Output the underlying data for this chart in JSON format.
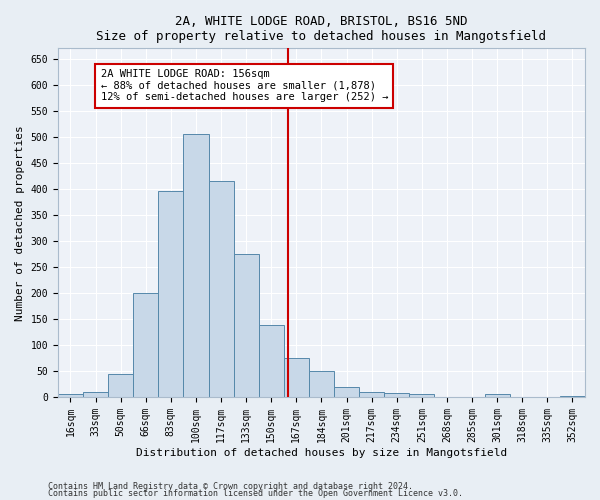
{
  "title1": "2A, WHITE LODGE ROAD, BRISTOL, BS16 5ND",
  "title2": "Size of property relative to detached houses in Mangotsfield",
  "xlabel": "Distribution of detached houses by size in Mangotsfield",
  "ylabel": "Number of detached properties",
  "bin_labels": [
    "16sqm",
    "33sqm",
    "50sqm",
    "66sqm",
    "83sqm",
    "100sqm",
    "117sqm",
    "133sqm",
    "150sqm",
    "167sqm",
    "184sqm",
    "201sqm",
    "217sqm",
    "234sqm",
    "251sqm",
    "268sqm",
    "285sqm",
    "301sqm",
    "318sqm",
    "335sqm",
    "352sqm"
  ],
  "bar_heights": [
    5,
    10,
    45,
    200,
    395,
    505,
    415,
    275,
    138,
    75,
    50,
    20,
    10,
    8,
    5,
    0,
    0,
    5,
    0,
    0,
    2
  ],
  "bar_color": "#c8d8e8",
  "bar_edge_color": "#5588aa",
  "vline_x": 8.65,
  "annotation_text": "2A WHITE LODGE ROAD: 156sqm\n← 88% of detached houses are smaller (1,878)\n12% of semi-detached houses are larger (252) →",
  "annotation_box_color": "#ffffff",
  "annotation_box_edge": "#cc0000",
  "vline_color": "#cc0000",
  "ylim": [
    0,
    670
  ],
  "yticks": [
    0,
    50,
    100,
    150,
    200,
    250,
    300,
    350,
    400,
    450,
    500,
    550,
    600,
    650
  ],
  "footer1": "Contains HM Land Registry data © Crown copyright and database right 2024.",
  "footer2": "Contains public sector information licensed under the Open Government Licence v3.0.",
  "background_color": "#e8eef4",
  "plot_bg_color": "#eef2f8",
  "title_fontsize": 9,
  "label_fontsize": 8,
  "tick_fontsize": 7,
  "annot_fontsize": 7.5,
  "footer_fontsize": 6
}
